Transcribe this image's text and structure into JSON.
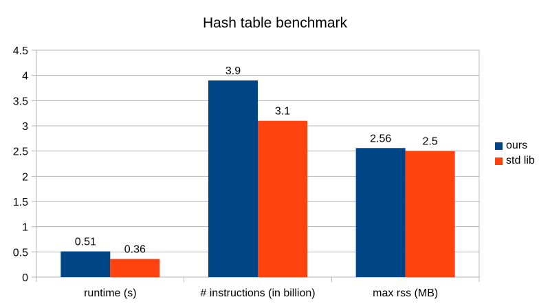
{
  "chart_data": {
    "type": "bar",
    "title": "Hash table benchmark",
    "xlabel": "",
    "ylabel": "",
    "categories": [
      "runtime (s)",
      "# instructions (in billion)",
      "max rss (MB)"
    ],
    "series": [
      {
        "name": "ours",
        "color": "#004586",
        "values": [
          0.51,
          3.9,
          2.56
        ]
      },
      {
        "name": "std lib",
        "color": "#ff420e",
        "values": [
          0.36,
          3.1,
          2.5
        ]
      }
    ],
    "ylim": [
      0,
      4.5
    ],
    "yticks": [
      "0",
      "0.5",
      "1",
      "1.5",
      "2",
      "2.5",
      "3",
      "3.5",
      "4",
      "4.5"
    ],
    "grid": true,
    "legend_position": "right",
    "data_labels": true
  }
}
